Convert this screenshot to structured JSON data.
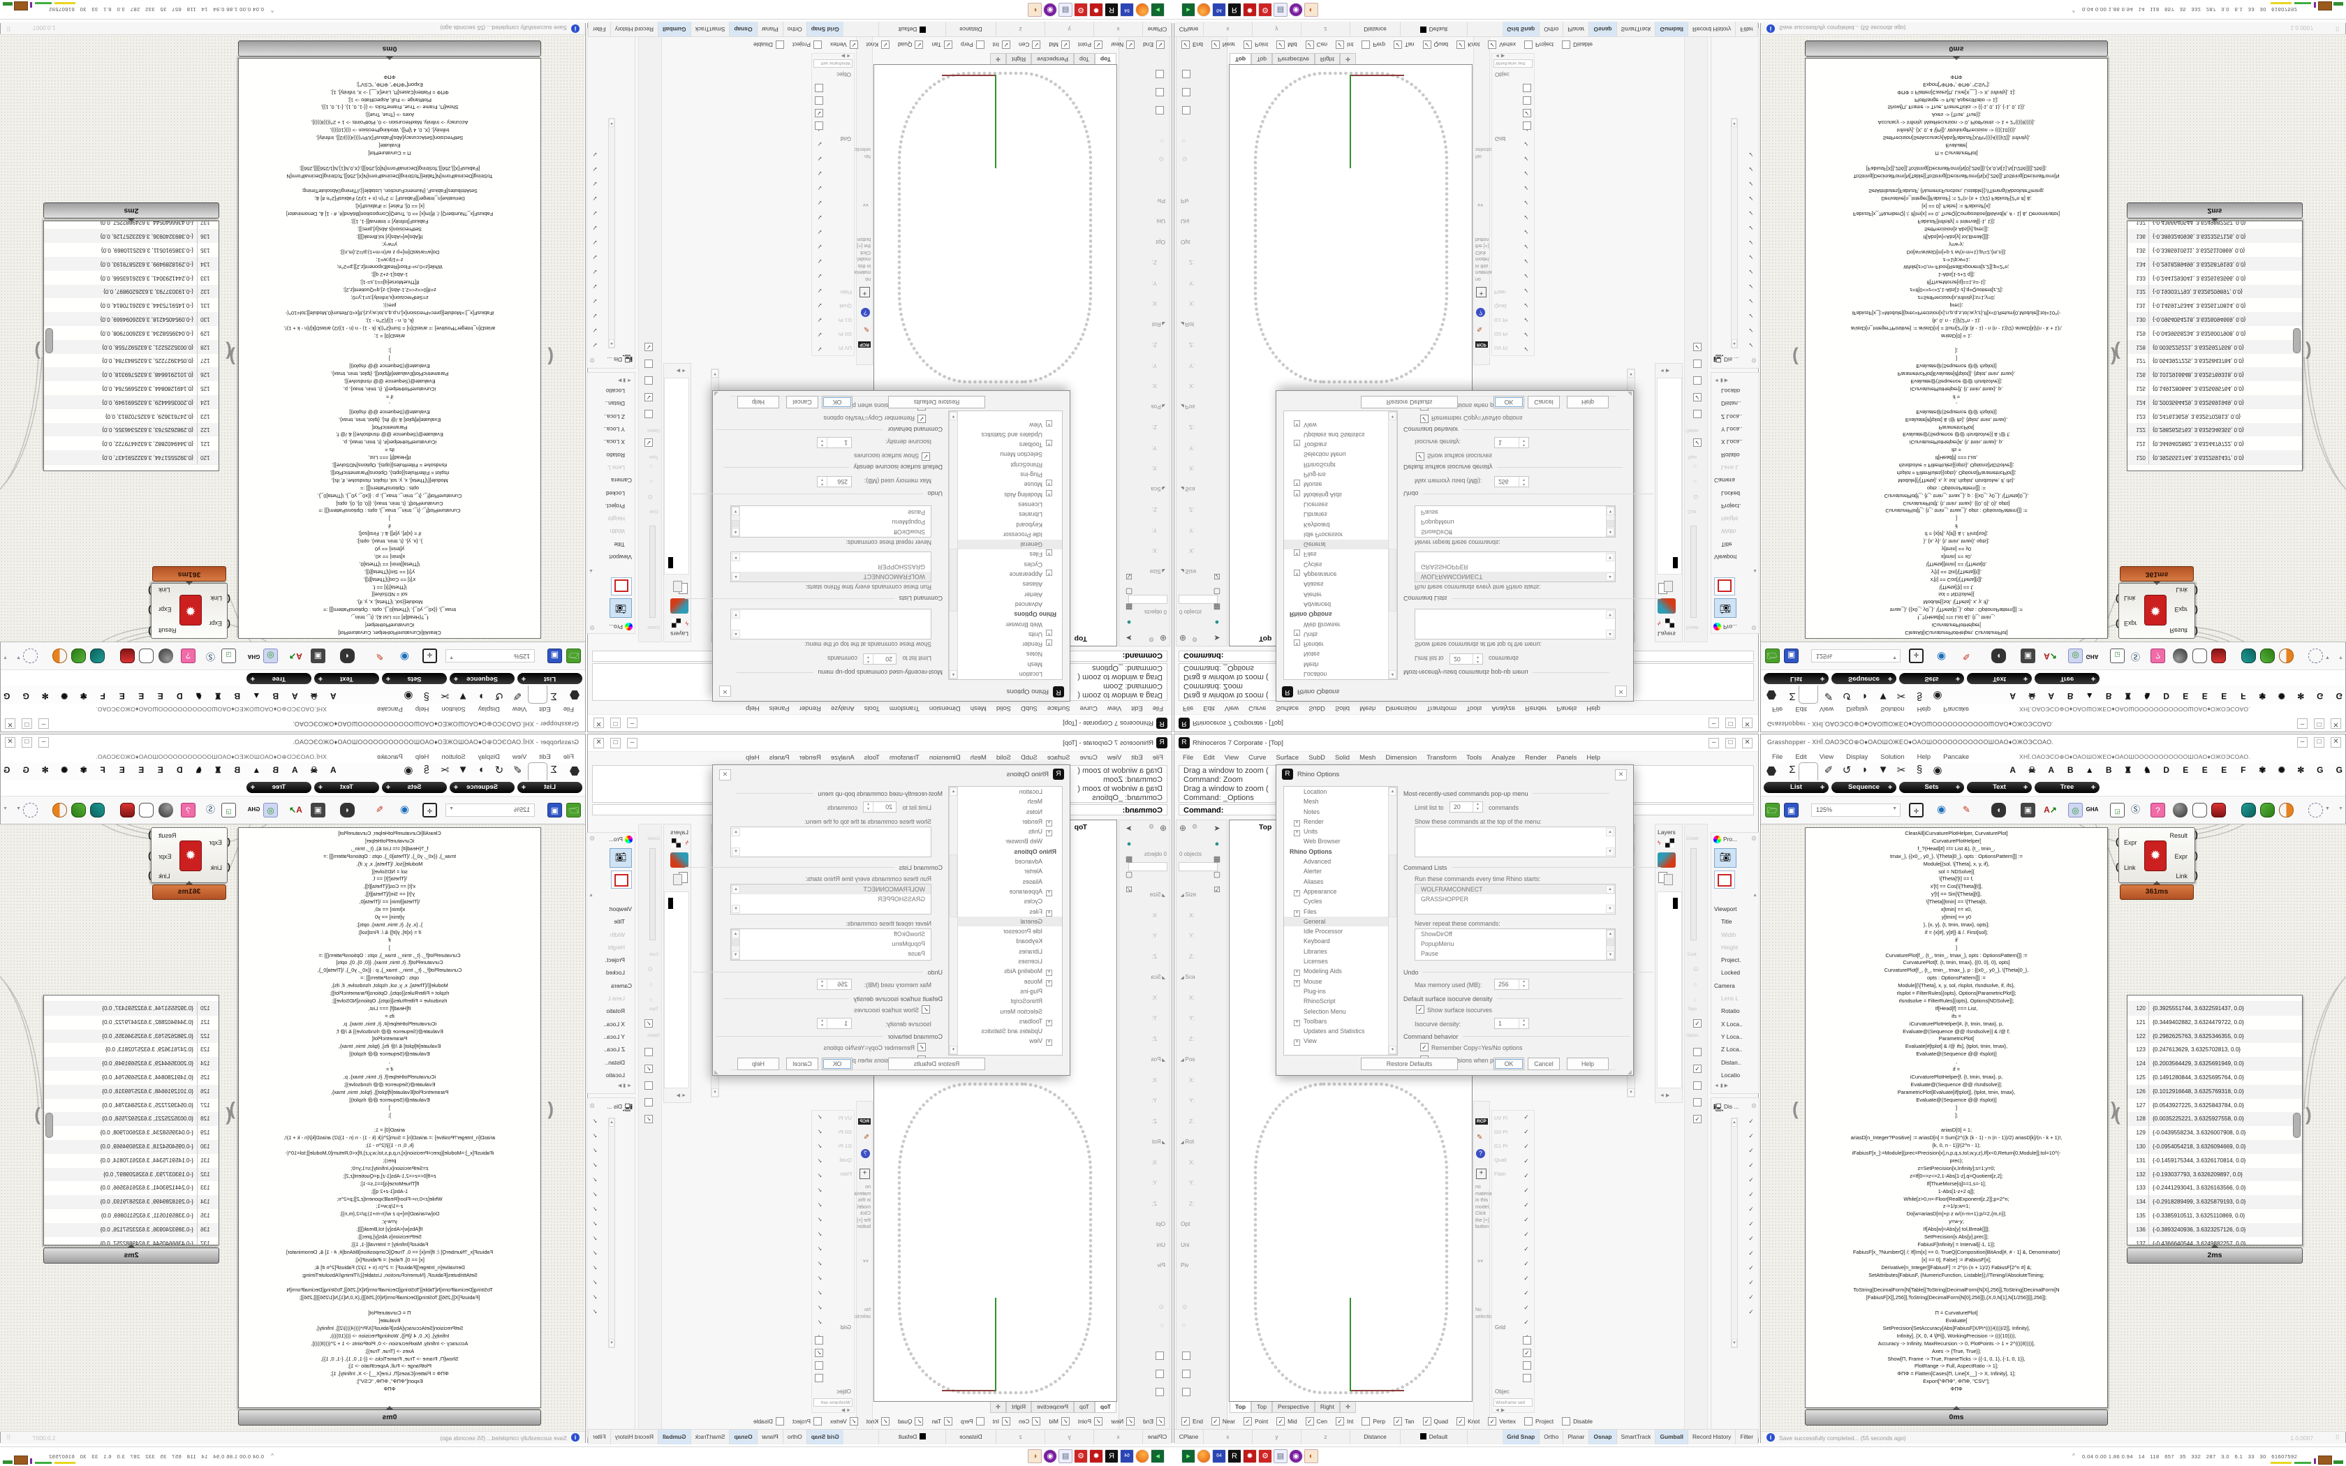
{
  "rhino": {
    "window_title": "Rhinoceros 7 Corporate - [Top]",
    "menu": [
      "File",
      "Edit",
      "View",
      "Curve",
      "Surface",
      "SubD",
      "Solid",
      "Mesh",
      "Dimension",
      "Transform",
      "Tools",
      "Analyze",
      "Render",
      "Panels",
      "Help"
    ],
    "history": [
      "Drag a window to zoom (",
      "Command: Zoom",
      "Drag a window to zoom (",
      "Command: _Options"
    ],
    "prompt": "Command:",
    "left": {
      "objects": "0 objects",
      "folder_note": "This folder is empty.",
      "rows": [
        "Size",
        "X:",
        "Y:",
        "Z:",
        "Sca",
        "X:",
        "Y:",
        "Z:",
        "Pos",
        "X:",
        "Y:",
        "Z:",
        "Rot",
        "X:",
        "Y:",
        "Z:",
        "Opt",
        "Uni",
        "Piv"
      ]
    },
    "viewport": {
      "label": "Top",
      "tabs": [
        "Top",
        "Top",
        "Perspective",
        "Right",
        "✛"
      ]
    },
    "osnap": [
      {
        "l": "End",
        "c": "✓"
      },
      {
        "l": "Near",
        "c": "✓"
      },
      {
        "l": "Point",
        "c": "✓"
      },
      {
        "l": "Mid",
        "c": "✓"
      },
      {
        "l": "Cen",
        "c": "✓"
      },
      {
        "l": "Int",
        "c": "✓"
      },
      {
        "l": "Perp",
        "c": ""
      },
      {
        "l": "Tan",
        "c": "✓"
      },
      {
        "l": "Quad",
        "c": "✓"
      },
      {
        "l": "Knot",
        "c": "✓"
      },
      {
        "l": "Vertex",
        "c": "✓"
      },
      {
        "l": "Project",
        "c": ""
      },
      {
        "l": "Disable",
        "c": ""
      }
    ],
    "status_cells": [
      "CPlane",
      "x",
      "y",
      "z",
      "Distance",
      "Default"
    ],
    "status_toggles": [
      "Grid Snap",
      "Ortho",
      "Planar",
      "Osnap",
      "SmartTrack",
      "Gumball",
      "Record History",
      "Filter"
    ],
    "panels": {
      "layers": "Layers",
      "rcp": "RCP",
      "props_header": "Pro...",
      "display_header": "Dis ...",
      "constr": "Constr",
      "cont": "Cont",
      "topo": "Topo",
      "option": "Option",
      "viewport_rows": [
        "Viewport",
        "Title",
        "Width",
        "Height",
        "Project.",
        "Locked",
        "Camera",
        "Lens L",
        "Rotatio",
        "X Loca..",
        "Y Loca..",
        "Z Loca..",
        "Distan..",
        "Locatio"
      ],
      "display_labels": [
        "UV Fl",
        "G0 Pr",
        "G1 Pr",
        "Quali",
        "Flatn"
      ],
      "display_checks": [
        "✓",
        "✓",
        "✓",
        "✓",
        "✓",
        "✓",
        "✓",
        "✓",
        "✓",
        "✓",
        "✓",
        "✓",
        "✓",
        "✓"
      ],
      "panel_checks": [
        "✓",
        "✓",
        "✓",
        "✓",
        "✓",
        "✓",
        "✓",
        "✓",
        "✓",
        "✓",
        "✓",
        "✓",
        "✓",
        "✓",
        "✓",
        "✓"
      ],
      "material_note": "no material in this model. Click the [+] button",
      "no_selection": "No selection",
      "grid": "Grid",
      "objec": "Objec",
      "wireframe": "Wireframe sett",
      "more_marker": "˅˅"
    }
  },
  "dialog": {
    "title": "Rhino Options",
    "tree": [
      "Location",
      "Mesh",
      "Notes",
      "Render",
      "Units",
      "Web Browser",
      "Rhino Options",
      "Advanced",
      "Alerter",
      "Aliases",
      "Appearance",
      "Cycles",
      "Files",
      "General",
      "Idle Processor",
      "Keyboard",
      "Libraries",
      "Licenses",
      "Modeling Aids",
      "Mouse",
      "Plug-ins",
      "RhinoScript",
      "Selection Menu",
      "Toolbars",
      "Updates and Statistics",
      "View"
    ],
    "mru_header": "Most-recently-used commands pop-up menu",
    "limit_label": "Limit list to",
    "limit_value": "20",
    "limit_suffix": "commands",
    "show_label": "Show these commands at the top of the menu:",
    "cmdlists_header": "Command Lists",
    "run_label": "Run these commands every time Rhino starts:",
    "run_items": [
      "WOLFRAMCONNECT",
      "GRASSHOPPER"
    ],
    "never_label": "Never repeat these commands:",
    "never_items": [
      "ShowDirOff",
      "PopupMenu",
      "Pause"
    ],
    "undo_header": "Undo",
    "memory_label": "Max memory used (MB):",
    "memory_value": "256",
    "iso_header": "Default surface isocurve density",
    "show_iso": "Show surface isocurves",
    "iso_label": "Isocurve density:",
    "iso_value": "1",
    "behavior_header": "Command behavior",
    "remember": "Remember Copy=Yes/No options",
    "extrusions": "Use extrusions when possible",
    "btn_restore": "Restore Defaults",
    "btn_ok": "OK",
    "btn_cancel": "Cancel",
    "btn_help": "Help"
  },
  "gh": {
    "title": "Grasshopper - XHĪ.ОАОЭСО⊕О♦ОАОШОЖЕО♦ОАОШОООООООООООШОАО♦ОЖОЭСОАО.",
    "menu": [
      "File",
      "Edit",
      "View",
      "Display",
      "Solution",
      "Help",
      "Pancake"
    ],
    "doc_symbols": "XHĪ.ОАОЭСО⊕О♦ОАОШОЖЕО♦ОАОШОООООООООООШОАО♦ОЖОЭСОАО.",
    "tab_glyphs": [
      "Σ",
      "Ψ",
      "✐",
      "↺",
      "◗",
      "▼",
      "✂",
      "§",
      "◉"
    ],
    "plugin_tabs": [
      "A",
      "☠",
      "A",
      "B",
      "▲",
      "B",
      "♜",
      "♞",
      "D",
      "E",
      "E",
      "E",
      "F",
      "✾",
      "✺",
      "✻",
      "G",
      "G"
    ],
    "panels": [
      "List",
      "Sequence",
      "Sets",
      "Text",
      "Tree"
    ],
    "zoom": "125%",
    "gha": "GHA",
    "code": "ClearAll[iCurvaturePlotHelper, CurvaturePlot]\niCurvaturePlotHelper[\nf_?(Head[#] =!= List &), {t_, tmin_,\ntmax_}, {{x0_, y0_}, \\[Theta]0_}, opts : OptionsPattern[]] :=\nModule[{sol, \\[Theta], x, y, if},\nsol = NDSolve[{\n\\[Theta]'[t] == f,\nx'[t] == Cos[\\[Theta][t]],\ny'[t] == Sin[\\[Theta][t]],\n\\[Theta][tmin] == \\[Theta]0,\nx[tmin] == x0,\ny[tmin] == y0\n}, {x, y}, {t, tmin, tmax}, opts];\nif = {x[#], y[#]} & /. First[sol];\nif\n]\nCurvaturePlot[f_, {t_, tmin_, tmax_}, opts : OptionsPattern[]] :=\nCurvaturePlot[f, {t, tmin, tmax}, {{0, 0}, 0}, opts]\nCurvaturePlot[f_, {t_, tmin_, tmax_}, p : {{x0_, y0_}, \\[Theta]0_},\nopts : OptionsPattern[]] :=\nModule[{\\[Theta], x, y, sol, rlsplot, rlsndsolve, if, ifs},\nrlsplot = FilterRules[{opts}, Options[ParametricPlot]];\nrlsndsolve = FilterRules[{opts}, Options[NDSolve]];\nIf[Head[f] === List,\nifs =\niCurvaturePlotHelper[#, {t, tmin, tmax}, p,\nEvaluate@(Sequence @@ rlsndsolve)] & /@ f;\nParametricPlot[\nEvaluate[#[tplot] & /@ ifs], {tplot, tmin, tmax},\nEvaluate@(Sequence @@ rlsplot)]\n,\nif =\niCurvaturePlotHelper[f, {t, tmin, tmax}, p,\nEvaluate@(Sequence @@ rlsndsolve)];\nParametricPlot[Evaluate[if[tplot]], {tplot, tmin, tmax},\nEvaluate@(Sequence @@ rlsplot)]\n]\n];\n \nariasD[0] = 1;\nariasD[n_Integer?Positive] := ariasD[n] = Sum[2^((k (k - 1) - n (n - 1))/2) ariasD[k]/(n - k + 1)!,\n{k, 0, n - 1}]/(2^n - 1);\niFabiusF[x_]:=Module[{prec=Precision[x],n,p,q,s,tol,w,y,z},If[x<0,Return[0,Module]];tol=10^(-\nprec);\nz=SetPrecision[x,Infinity];s=1;y=0;\nz=If[0<=z<=2,1-Abs[1-z],q=Quotient[z,2];\nIf[ThueMorse[q]==1,s=-1];\n1-Abs[1-z+2 q]];\nWhile[z>0,n=-Floor[RealExponent[z,2]];p=2^n;\nz-=1/p;w=1;\nDo[w=ariasD[m]+p z w/(n-m+1);p/=2,{m,n}];\ny=w-y;\nIf[Abs[w]<Abs[y] tol,Break[]]];\nSetPrecision[s Abs[y],prec]];\nFabiusF[Infinity] = Interval[{-1, 1}];\nFabiusF[x_?NumberQ] /; If[Im[x] == 0, TrueQ[Composition[BitAnd[#, # - 1] &, Denominator]\n[x] == 0], False] := iFabiusF[x];\nDerivative[n_Integer][FabiusF] := 2^(n (n + 1)/2) FabiusF[2^n #] &;\nSetAttributes[FabiusF, {NumericFunction, Listable}];//Timing//AbsoluteTiming;\n \nToString[DecimalForm[N[Table[{ToString[DecimalForm[N[X],256]],ToString[DecimalForm[N\n[FabiusF[X]],256]],ToString[DecimalForm[N[0],256]]},{X,0,N[1],N[1/256]}]],256]];\n \nΠ = CurvaturePlot[\nEvaluate[\nSetPrecision[SetAccuracy[Abs[FabiusF[X/Pi*((((4))))/2]], Infinity],\nInfinity], {X, 0, 4 \\[Pi]}, WorkingPrecision -> ((((10)))),\nAccuracy -> Infinity, MaxRecursion -> 0, PlotPoints -> 1 + 2^((((8))))],\nAxes -> {True, True}];\nShow[Π, Frame -> True, FrameTicks -> {{-1, 0, 1}, {-1, 0, 1}},\nPlotRange -> Full, AspectRatio -> 1];\nΦΠΦ = Flatten[Cases[Π, Line[X__] -> X, Infinity], 1];\nExport[\"ΦΠΦ\", ΦΠΦ, \"CSV\"];\nΦΠΦ",
    "component": {
      "in1": "Expr",
      "in2": "Link",
      "out1": "Result",
      "out2": "Expr",
      "out3": "Link",
      "time": "361ms"
    },
    "list": {
      "rows": [
        {
          "i": "120",
          "v": "{0.3925551744, 3.6322591437, 0.0}"
        },
        {
          "i": "121",
          "v": "{0.3449402882, 3.6324479722, 0.0}"
        },
        {
          "i": "122",
          "v": "{0.2982625763, 3.6325346355, 0.0}"
        },
        {
          "i": "123",
          "v": "{0.247613629, 3.6325702813, 0.0}"
        },
        {
          "i": "124",
          "v": "{0.2003564429, 3.6325691949, 0.0}"
        },
        {
          "i": "125",
          "v": "{0.1491280844, 3.6325695764, 0.0}"
        },
        {
          "i": "126",
          "v": "{0.1012916648, 3.6325769318, 0.0}"
        },
        {
          "i": "127",
          "v": "{0.0543927225, 3.6325843784, 0.0}"
        },
        {
          "i": "128",
          "v": "{0.0035225221, 3.6325927558, 0.0}"
        },
        {
          "i": "129",
          "v": "{-0.0439558234, 3.6326007908, 0.0}"
        },
        {
          "i": "130",
          "v": "{-0.0954054218, 3.6326094669, 0.0}"
        },
        {
          "i": "131",
          "v": "{-0.1459175344, 3.6326170814, 0.0}"
        },
        {
          "i": "132",
          "v": "{-0.193037793, 3.6326209897, 0.0}"
        },
        {
          "i": "133",
          "v": "{-0.2441293041, 3.6326163566, 0.0}"
        },
        {
          "i": "134",
          "v": "{-0.2918289499, 3.6325879193, 0.0}"
        },
        {
          "i": "135",
          "v": "{-0.3385910511, 3.6325110869, 0.0}"
        },
        {
          "i": "136",
          "v": "{-0.3893240936, 3.6323257126, 0.0}"
        },
        {
          "i": "137",
          "v": "{-0.4366640544, 3.6249882257, 0.0}"
        }
      ],
      "time": "2ms"
    },
    "code_time": "0ms",
    "status": "Save successfully completed... (55 seconds ago)",
    "version": "1.0.0007"
  },
  "taskbar": {
    "tray": "0.04 0.00 1.86 0.94   14   118   657   35   332   287   3.0   6.1   33   30   61607592",
    "tray_expand": "^"
  }
}
